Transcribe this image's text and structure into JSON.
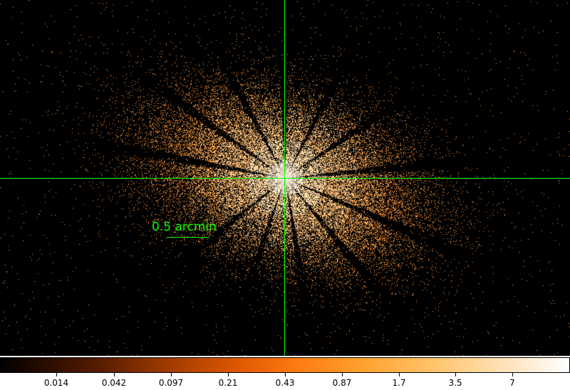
{
  "scale": {
    "label": "0.5 arcmin"
  },
  "crosshair": {
    "color": "#00ff00"
  },
  "colorbar": {
    "ticks": [
      "0.014",
      "0.042",
      "0.097",
      "0.21",
      "0.43",
      "0.87",
      "1.7",
      "3.5",
      "7"
    ]
  }
}
